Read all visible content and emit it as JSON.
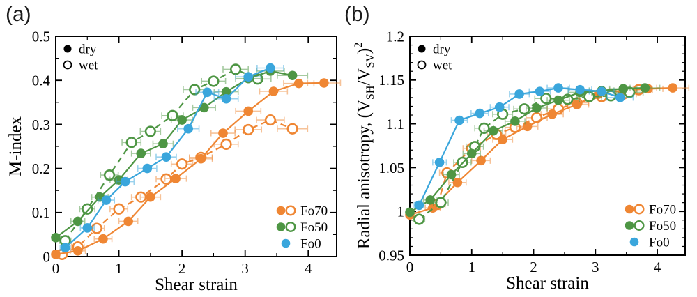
{
  "chart_data": [
    {
      "type": "scatter",
      "panel_label": "(a)",
      "xlabel": "Shear strain",
      "ylabel": "M-index",
      "ylabel_parts": [
        {
          "t": "M-index"
        }
      ],
      "xlim": [
        0,
        4.45
      ],
      "ylim": [
        0,
        0.5
      ],
      "xticks": [
        0,
        1,
        2,
        3,
        4
      ],
      "xtick_labels": [
        "0",
        "1",
        "2",
        "3",
        "4"
      ],
      "x_minor_step": 0.5,
      "yticks": [
        0,
        0.1,
        0.2,
        0.3,
        0.4,
        0.5
      ],
      "ytick_labels": [
        "0",
        "0.1",
        "0.2",
        "0.3",
        "0.4",
        "0.5"
      ],
      "y_minor_step": 0.05,
      "grid": false,
      "condition_legend": [
        {
          "label": "dry",
          "marker": "filled"
        },
        {
          "label": "wet",
          "marker": "open"
        }
      ],
      "series_legend": [
        {
          "label": "Fo70",
          "color": "#EF8633",
          "markers": [
            "filled",
            "open"
          ]
        },
        {
          "label": "Fo50",
          "color": "#4E9644",
          "markers": [
            "filled",
            "open"
          ]
        },
        {
          "label": "Fo0",
          "color": "#3AA6DC",
          "markers": [
            "filled"
          ]
        }
      ],
      "series": [
        {
          "name": "Fo70 wet",
          "group": "Fo70",
          "condition": "wet",
          "color": "#EF8633",
          "marker": "open",
          "line": "dashed",
          "x": [
            0.1,
            0.35,
            0.65,
            1.0,
            1.35,
            1.75,
            2.0,
            2.3,
            2.7,
            3.05,
            3.4,
            3.75
          ],
          "y": [
            0.005,
            0.022,
            0.064,
            0.108,
            0.135,
            0.176,
            0.21,
            0.225,
            0.255,
            0.288,
            0.31,
            0.29
          ],
          "xerr": [
            0.08,
            0.1,
            0.12,
            0.14,
            0.15,
            0.16,
            0.17,
            0.18,
            0.19,
            0.21,
            0.22,
            0.24
          ]
        },
        {
          "name": "Fo70 dry",
          "group": "Fo70",
          "condition": "dry",
          "color": "#EF8633",
          "marker": "filled",
          "line": "solid",
          "x": [
            0,
            0.35,
            0.75,
            1.15,
            1.5,
            1.9,
            2.3,
            2.65,
            3.05,
            3.45,
            3.85,
            4.25
          ],
          "y": [
            0.005,
            0.013,
            0.04,
            0.08,
            0.135,
            0.177,
            0.222,
            0.28,
            0.33,
            0.375,
            0.393,
            0.394
          ],
          "xerr": [
            0.06,
            0.12,
            0.14,
            0.15,
            0.16,
            0.17,
            0.18,
            0.19,
            0.2,
            0.22,
            0.24,
            0.26
          ]
        },
        {
          "name": "Fo50 wet",
          "group": "Fo50",
          "condition": "wet",
          "color": "#4E9644",
          "marker": "open",
          "line": "dashed",
          "x": [
            0.15,
            0.5,
            0.85,
            1.2,
            1.5,
            1.85,
            2.2,
            2.5,
            2.85,
            3.2
          ],
          "y": [
            0.036,
            0.108,
            0.185,
            0.259,
            0.284,
            0.32,
            0.379,
            0.398,
            0.425,
            0.403
          ],
          "xerr": [
            0.09,
            0.12,
            0.14,
            0.15,
            0.16,
            0.17,
            0.18,
            0.19,
            0.2,
            0.21
          ]
        },
        {
          "name": "Fo50 dry",
          "group": "Fo50",
          "condition": "dry",
          "color": "#4E9644",
          "marker": "filled",
          "line": "solid",
          "x": [
            0,
            0.35,
            0.7,
            1.0,
            1.35,
            1.7,
            2.0,
            2.35,
            2.7,
            3.05,
            3.4,
            3.75
          ],
          "y": [
            0.043,
            0.08,
            0.135,
            0.174,
            0.234,
            0.256,
            0.31,
            0.338,
            0.374,
            0.404,
            0.421,
            0.411
          ],
          "xerr": [
            0.06,
            0.11,
            0.13,
            0.14,
            0.15,
            0.16,
            0.17,
            0.18,
            0.19,
            0.2,
            0.22,
            0.24
          ]
        },
        {
          "name": "Fo0 dry",
          "group": "Fo0",
          "condition": "dry",
          "color": "#3AA6DC",
          "marker": "filled",
          "line": "solid",
          "x": [
            0.15,
            0.5,
            0.8,
            1.1,
            1.45,
            1.75,
            2.1,
            2.4,
            2.7,
            3.05,
            3.4
          ],
          "y": [
            0.02,
            0.065,
            0.128,
            0.17,
            0.2,
            0.226,
            0.29,
            0.373,
            0.358,
            0.408,
            0.428
          ],
          "xerr": [
            0.08,
            0.11,
            0.13,
            0.14,
            0.15,
            0.16,
            0.17,
            0.18,
            0.19,
            0.2,
            0.21
          ]
        }
      ]
    },
    {
      "type": "scatter",
      "panel_label": "(b)",
      "xlabel": "Shear strain",
      "ylabel": "Radial anisotropy, (VSH/VSV)2",
      "ylabel_parts": [
        {
          "t": "Radial anisotropy, (V"
        },
        {
          "t": "SH",
          "style": "sub"
        },
        {
          "t": "/V"
        },
        {
          "t": "SV",
          "style": "sub"
        },
        {
          "t": ")"
        },
        {
          "t": "2",
          "style": "sup"
        }
      ],
      "xlim": [
        0,
        4.45
      ],
      "ylim": [
        0.95,
        1.2
      ],
      "xticks": [
        0,
        1,
        2,
        3,
        4
      ],
      "xtick_labels": [
        "0",
        "1",
        "2",
        "3",
        "4"
      ],
      "x_minor_step": 0.5,
      "yticks": [
        0.95,
        1.0,
        1.05,
        1.1,
        1.15,
        1.2
      ],
      "ytick_labels": [
        "0.95",
        "1",
        "1.05",
        "1.1",
        "1.15",
        "1.2"
      ],
      "y_minor_step": 0.01,
      "grid": false,
      "condition_legend": [
        {
          "label": "dry",
          "marker": "filled"
        },
        {
          "label": "wet",
          "marker": "open"
        }
      ],
      "series_legend": [
        {
          "label": "Fo70",
          "color": "#EF8633",
          "markers": [
            "filled",
            "open"
          ]
        },
        {
          "label": "Fo50",
          "color": "#4E9644",
          "markers": [
            "filled",
            "open"
          ]
        },
        {
          "label": "Fo0",
          "color": "#3AA6DC",
          "markers": [
            "filled"
          ]
        }
      ],
      "series": [
        {
          "name": "Fo70 wet",
          "group": "Fo70",
          "condition": "wet",
          "color": "#EF8633",
          "marker": "open",
          "line": "dashed",
          "x": [
            0.45,
            0.6,
            1.0,
            1.4,
            1.7,
            2.05,
            2.4,
            2.7,
            3.1,
            3.45,
            3.7
          ],
          "y": [
            1.008,
            1.044,
            1.072,
            1.088,
            1.096,
            1.107,
            1.117,
            1.124,
            1.131,
            1.134,
            1.139
          ],
          "xerr": [
            0.12,
            0.12,
            0.14,
            0.15,
            0.16,
            0.17,
            0.18,
            0.19,
            0.2,
            0.21,
            0.22
          ]
        },
        {
          "name": "Fo70 dry",
          "group": "Fo70",
          "condition": "dry",
          "color": "#EF8633",
          "marker": "filled",
          "line": "solid",
          "x": [
            0,
            0.37,
            0.77,
            1.15,
            1.5,
            1.9,
            2.3,
            2.7,
            3.05,
            3.45,
            3.85,
            4.25
          ],
          "y": [
            0.996,
            1.004,
            1.033,
            1.058,
            1.082,
            1.097,
            1.111,
            1.122,
            1.134,
            1.138,
            1.14,
            1.141
          ],
          "xerr": [
            0.06,
            0.12,
            0.14,
            0.15,
            0.16,
            0.17,
            0.18,
            0.19,
            0.2,
            0.22,
            0.24,
            0.26
          ]
        },
        {
          "name": "Fo50 wet",
          "group": "Fo50",
          "condition": "wet",
          "color": "#4E9644",
          "marker": "open",
          "line": "dashed",
          "x": [
            0.15,
            0.5,
            0.85,
            1.05,
            1.2,
            1.5,
            1.85,
            2.2,
            2.55,
            2.9,
            3.25,
            3.55
          ],
          "y": [
            0.991,
            1.01,
            1.056,
            1.074,
            1.095,
            1.111,
            1.117,
            1.129,
            1.128,
            1.131,
            1.132,
            1.136
          ],
          "xerr": [
            0.09,
            0.12,
            0.14,
            0.14,
            0.15,
            0.16,
            0.17,
            0.18,
            0.19,
            0.2,
            0.21,
            0.22
          ]
        },
        {
          "name": "Fo50 dry",
          "group": "Fo50",
          "condition": "dry",
          "color": "#4E9644",
          "marker": "filled",
          "line": "solid",
          "x": [
            0,
            0.33,
            0.67,
            1.0,
            1.35,
            1.7,
            2.05,
            2.4,
            2.75,
            3.1,
            3.45,
            3.8
          ],
          "y": [
            0.999,
            1.013,
            1.042,
            1.066,
            1.092,
            1.103,
            1.118,
            1.127,
            1.136,
            1.138,
            1.14,
            1.141
          ],
          "xerr": [
            0.06,
            0.11,
            0.13,
            0.14,
            0.15,
            0.16,
            0.17,
            0.18,
            0.19,
            0.2,
            0.22,
            0.24
          ]
        },
        {
          "name": "Fo0 dry",
          "group": "Fo0",
          "condition": "dry",
          "color": "#3AA6DC",
          "marker": "filled",
          "line": "solid",
          "x": [
            0.15,
            0.48,
            0.8,
            1.13,
            1.45,
            1.77,
            2.1,
            2.4,
            2.75,
            3.1,
            3.4
          ],
          "y": [
            1.007,
            1.056,
            1.104,
            1.112,
            1.119,
            1.134,
            1.137,
            1.141,
            1.139,
            1.137,
            1.13
          ],
          "xerr": [
            0.08,
            0.11,
            0.13,
            0.14,
            0.15,
            0.16,
            0.17,
            0.18,
            0.19,
            0.2,
            0.21
          ]
        }
      ]
    }
  ],
  "colors": {
    "Fo70": "#EF8633",
    "Fo50": "#4E9644",
    "Fo0": "#3AA6DC",
    "axis": "#000000",
    "background": "#FFFFFF"
  }
}
